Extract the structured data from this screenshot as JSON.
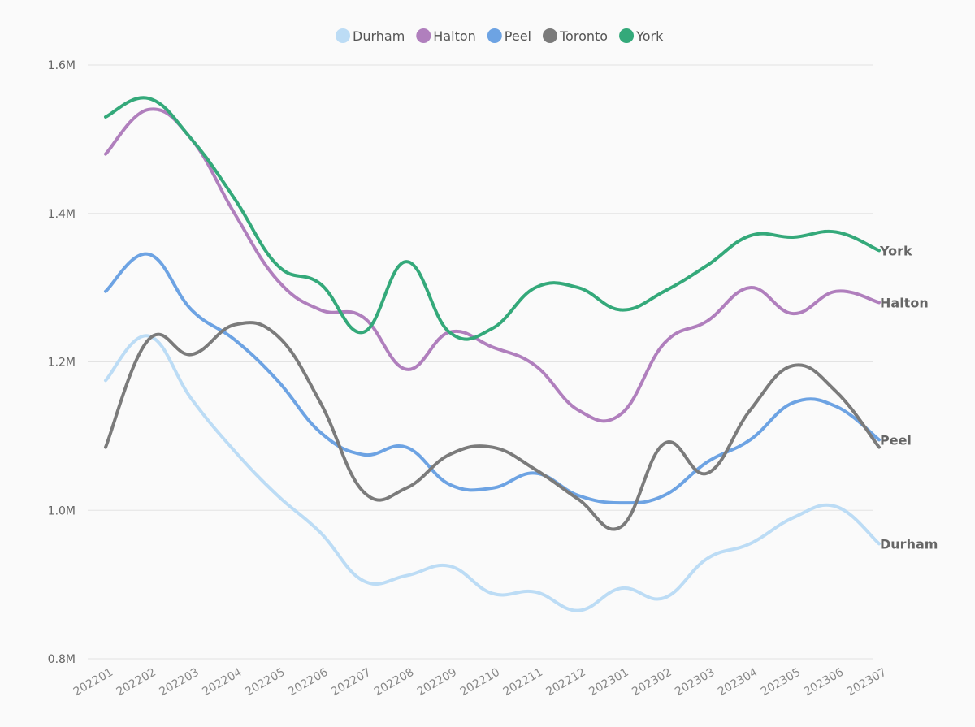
{
  "chart_data": {
    "type": "line",
    "title": "",
    "xlabel": "",
    "ylabel": "",
    "categories": [
      "202201",
      "202202",
      "202203",
      "202204",
      "202205",
      "202206",
      "202207",
      "202208",
      "202209",
      "202210",
      "202211",
      "202212",
      "202301",
      "202302",
      "202303",
      "202304",
      "202305",
      "202306",
      "202307"
    ],
    "ylim": [
      800000,
      1600000
    ],
    "yticks": [
      800000,
      1000000,
      1200000,
      1400000,
      1600000
    ],
    "ytick_labels": [
      "0.8M",
      "1.0M",
      "1.2M",
      "1.4M",
      "1.6M"
    ],
    "grid": true,
    "legend_position": "top",
    "series": [
      {
        "name": "Durham",
        "color": "#bcdcf5",
        "end_label": "Durham",
        "values": [
          1175000,
          1235000,
          1150000,
          1080000,
          1020000,
          970000,
          905000,
          912000,
          925000,
          888000,
          890000,
          865000,
          895000,
          882000,
          935000,
          955000,
          990000,
          1005000,
          955000
        ]
      },
      {
        "name": "Halton",
        "color": "#b07fbd",
        "end_label": "Halton",
        "values": [
          1480000,
          1540000,
          1500000,
          1400000,
          1310000,
          1270000,
          1260000,
          1190000,
          1240000,
          1220000,
          1195000,
          1135000,
          1130000,
          1225000,
          1255000,
          1300000,
          1265000,
          1295000,
          1280000
        ]
      },
      {
        "name": "Peel",
        "color": "#6da3e3",
        "end_label": "Peel",
        "values": [
          1295000,
          1345000,
          1270000,
          1230000,
          1175000,
          1105000,
          1075000,
          1085000,
          1035000,
          1030000,
          1050000,
          1020000,
          1010000,
          1020000,
          1065000,
          1095000,
          1145000,
          1140000,
          1095000
        ]
      },
      {
        "name": "Toronto",
        "color": "#7b7b7b",
        "end_label": "",
        "values": [
          1085000,
          1230000,
          1210000,
          1250000,
          1235000,
          1145000,
          1025000,
          1030000,
          1075000,
          1085000,
          1055000,
          1015000,
          978000,
          1090000,
          1050000,
          1135000,
          1195000,
          1160000,
          1085000
        ]
      },
      {
        "name": "York",
        "color": "#34a97a",
        "end_label": "York",
        "values": [
          1530000,
          1555000,
          1500000,
          1420000,
          1330000,
          1305000,
          1240000,
          1335000,
          1240000,
          1245000,
          1300000,
          1300000,
          1270000,
          1295000,
          1330000,
          1370000,
          1368000,
          1375000,
          1350000
        ]
      }
    ]
  }
}
